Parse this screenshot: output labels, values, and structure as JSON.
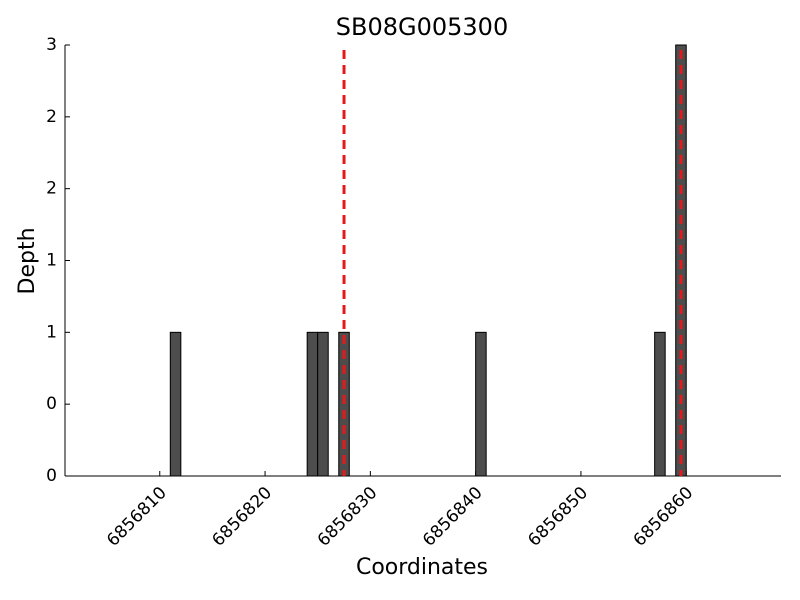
{
  "chart_data": {
    "type": "bar",
    "title": "SB08G005300",
    "x_label": "Coordinates",
    "y_label": "Depth",
    "x": [
      6856811.5,
      6856824.5,
      6856825.5,
      6856827.5,
      6856840.5,
      6856857.5,
      6856859.5
    ],
    "values": [
      1,
      1,
      1,
      1,
      1,
      1,
      3
    ],
    "color": "#4d4d4d",
    "vlines": [
      6856827.5,
      6856859.5
    ],
    "vline_color": "#e31a1c",
    "xlim": [
      6856801,
      6856869
    ],
    "xticks": [
      6856810,
      6856820,
      6856830,
      6856840,
      6856850,
      6856860
    ],
    "ylim": [
      0,
      3
    ],
    "yticks": [
      0,
      {
        "value": 0.5,
        "label": "0"
      },
      1,
      {
        "value": 1.5,
        "label": "1"
      },
      2,
      {
        "value": 2.5,
        "label": "2"
      },
      3
    ]
  }
}
